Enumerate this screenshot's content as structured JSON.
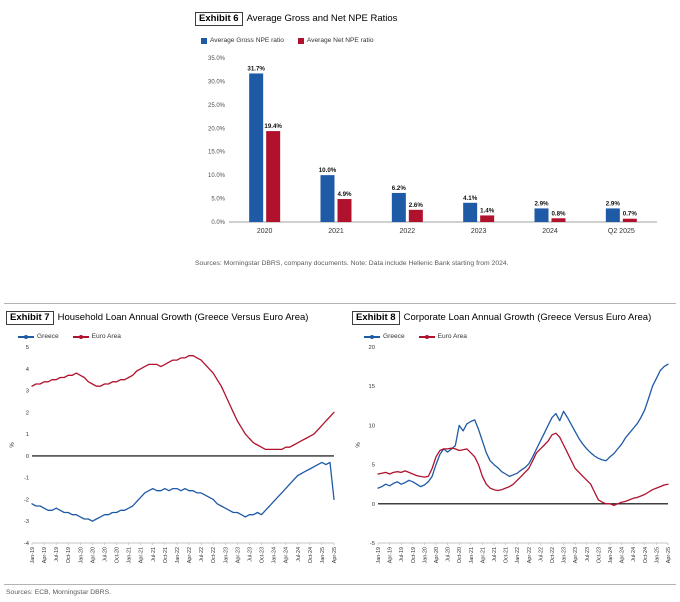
{
  "colors": {
    "greece_blue": "#1f5aa6",
    "euro_red": "#b0122e",
    "divider": "#b3b3b3",
    "source_text": "#595959"
  },
  "exhibit6": {
    "label": "Exhibit 6",
    "title": "Average Gross and Net NPE Ratios",
    "source": "Sources: Morningstar DBRS, company documents. Note: Data include Hellenic Bank starting from 2024."
  },
  "exhibit7": {
    "label": "Exhibit 7",
    "title": "Household Loan Annual Growth (Greece Versus Euro Area)"
  },
  "exhibit8": {
    "label": "Exhibit 8",
    "title": "Corporate Loan Annual Growth (Greece Versus Euro Area)"
  },
  "footer": {
    "source": "Sources: ECB, Morningstar DBRS."
  },
  "chart_data": [
    {
      "id": "chart6",
      "type": "bar",
      "title": "Average Gross and Net NPE Ratios",
      "categories": [
        "2020",
        "2021",
        "2022",
        "2023",
        "2024",
        "Q2 2025"
      ],
      "series": [
        {
          "name": "Average Gross NPE ratio",
          "color": "#1f5aa6",
          "values": [
            31.7,
            10.0,
            6.2,
            4.1,
            2.9,
            2.9
          ]
        },
        {
          "name": "Average Net NPE ratio",
          "color": "#b0122e",
          "values": [
            19.4,
            4.9,
            2.6,
            1.4,
            0.8,
            0.7
          ]
        }
      ],
      "ylim": [
        0,
        35
      ],
      "ytick_step": 5,
      "ytick_suffix": "%",
      "grid": false,
      "legend_position": "top-left"
    },
    {
      "id": "chart7",
      "type": "line",
      "title": "Household Loan Annual Growth (Greece Versus Euro Area)",
      "ylabel": "%",
      "ylim": [
        -4,
        5
      ],
      "ytick_step": 1,
      "grid": false,
      "legend_position": "top-left",
      "label_every": 3,
      "x_labels": [
        "Jan-19",
        "Apr-19",
        "Jul-19",
        "Oct-19",
        "Jan-20",
        "Apr-20",
        "Jul-20",
        "Oct-20",
        "Jan-21",
        "Apr-21",
        "Jul-21",
        "Oct-21",
        "Jan-22",
        "Apr-22",
        "Jul-22",
        "Oct-22",
        "Jan-23",
        "Apr-23",
        "Jul-23",
        "Oct-23",
        "Jan-24",
        "Apr-24",
        "Jul-24",
        "Oct-24",
        "Jan-25",
        "Apr-25"
      ],
      "series": [
        {
          "name": "Greece",
          "color": "#1f5aa6",
          "values": [
            -2.2,
            -2.3,
            -2.3,
            -2.4,
            -2.5,
            -2.5,
            -2.4,
            -2.5,
            -2.6,
            -2.6,
            -2.7,
            -2.7,
            -2.8,
            -2.9,
            -2.9,
            -3.0,
            -2.9,
            -2.8,
            -2.7,
            -2.7,
            -2.6,
            -2.6,
            -2.5,
            -2.5,
            -2.4,
            -2.3,
            -2.1,
            -1.9,
            -1.7,
            -1.6,
            -1.5,
            -1.6,
            -1.6,
            -1.5,
            -1.6,
            -1.5,
            -1.5,
            -1.6,
            -1.5,
            -1.6,
            -1.6,
            -1.7,
            -1.7,
            -1.8,
            -1.9,
            -2.0,
            -2.2,
            -2.3,
            -2.4,
            -2.5,
            -2.6,
            -2.6,
            -2.7,
            -2.8,
            -2.7,
            -2.7,
            -2.6,
            -2.7,
            -2.5,
            -2.3,
            -2.1,
            -1.9,
            -1.7,
            -1.5,
            -1.3,
            -1.1,
            -0.9,
            -0.8,
            -0.7,
            -0.6,
            -0.5,
            -0.4,
            -0.3,
            -0.4,
            -0.3,
            -2.0
          ]
        },
        {
          "name": "Euro Area",
          "color": "#b0122e",
          "values": [
            3.2,
            3.3,
            3.3,
            3.4,
            3.4,
            3.5,
            3.5,
            3.6,
            3.6,
            3.7,
            3.7,
            3.8,
            3.7,
            3.6,
            3.4,
            3.3,
            3.2,
            3.2,
            3.3,
            3.3,
            3.4,
            3.4,
            3.5,
            3.5,
            3.6,
            3.7,
            3.9,
            4.0,
            4.1,
            4.2,
            4.2,
            4.2,
            4.1,
            4.2,
            4.3,
            4.4,
            4.4,
            4.5,
            4.5,
            4.6,
            4.6,
            4.5,
            4.4,
            4.2,
            4.0,
            3.8,
            3.5,
            3.2,
            2.8,
            2.4,
            2.0,
            1.6,
            1.3,
            1.0,
            0.8,
            0.6,
            0.5,
            0.4,
            0.3,
            0.3,
            0.3,
            0.3,
            0.3,
            0.4,
            0.4,
            0.5,
            0.6,
            0.7,
            0.8,
            0.9,
            1.0,
            1.2,
            1.4,
            1.6,
            1.8,
            2.0
          ]
        }
      ]
    },
    {
      "id": "chart8",
      "type": "line",
      "title": "Corporate Loan Annual Growth (Greece Versus Euro Area)",
      "ylabel": "%",
      "ylim": [
        -5,
        20
      ],
      "ytick_step": 5,
      "grid": false,
      "legend_position": "top-left",
      "label_every": 3,
      "x_labels": [
        "Jan-19",
        "Apr-19",
        "Jul-19",
        "Oct-19",
        "Jan-20",
        "Apr-20",
        "Jul-20",
        "Oct-20",
        "Jan-21",
        "Apr-21",
        "Jul-21",
        "Oct-21",
        "Jan-22",
        "Apr-22",
        "Jul-22",
        "Oct-22",
        "Jan-23",
        "Apr-23",
        "Jul-23",
        "Oct-23",
        "Jan-24",
        "Apr-24",
        "Jul-24",
        "Oct-24",
        "Jan-25",
        "Apr-25"
      ],
      "series": [
        {
          "name": "Greece",
          "color": "#1f5aa6",
          "values": [
            2.0,
            2.2,
            2.5,
            2.3,
            2.6,
            2.8,
            2.5,
            2.7,
            3.0,
            2.8,
            2.5,
            2.2,
            2.4,
            2.8,
            3.5,
            5.0,
            6.3,
            7.0,
            6.6,
            7.0,
            7.4,
            10.0,
            9.3,
            10.2,
            10.5,
            10.7,
            9.5,
            8.0,
            6.5,
            5.5,
            5.0,
            4.6,
            4.1,
            3.8,
            3.5,
            3.7,
            3.9,
            4.3,
            4.6,
            5.1,
            6.0,
            7.0,
            8.0,
            9.0,
            10.0,
            11.0,
            11.5,
            10.6,
            11.8,
            11.0,
            10.1,
            9.2,
            8.3,
            7.6,
            7.0,
            6.5,
            6.1,
            5.8,
            5.6,
            5.5,
            6.0,
            6.4,
            7.0,
            7.6,
            8.4,
            9.0,
            9.6,
            10.2,
            11.0,
            12.0,
            13.5,
            15.0,
            16.0,
            17.0,
            17.5,
            17.8
          ]
        },
        {
          "name": "Euro Area",
          "color": "#b0122e",
          "values": [
            3.8,
            3.9,
            4.0,
            3.8,
            4.0,
            4.1,
            4.0,
            4.2,
            4.0,
            3.8,
            3.6,
            3.5,
            3.4,
            3.5,
            4.5,
            6.0,
            6.8,
            7.0,
            7.0,
            7.1,
            7.0,
            6.8,
            6.9,
            7.0,
            6.5,
            6.0,
            5.0,
            3.5,
            2.5,
            2.0,
            1.8,
            1.7,
            1.8,
            2.0,
            2.2,
            2.5,
            3.0,
            3.5,
            4.0,
            4.5,
            5.5,
            6.5,
            7.0,
            7.5,
            8.0,
            8.8,
            9.0,
            8.5,
            7.5,
            6.5,
            5.5,
            4.5,
            4.0,
            3.5,
            3.0,
            2.5,
            1.5,
            0.5,
            0.2,
            0.0,
            0.0,
            -0.2,
            0.0,
            0.2,
            0.3,
            0.5,
            0.7,
            0.8,
            1.0,
            1.2,
            1.5,
            1.8,
            2.0,
            2.2,
            2.4,
            2.5
          ]
        }
      ]
    }
  ]
}
